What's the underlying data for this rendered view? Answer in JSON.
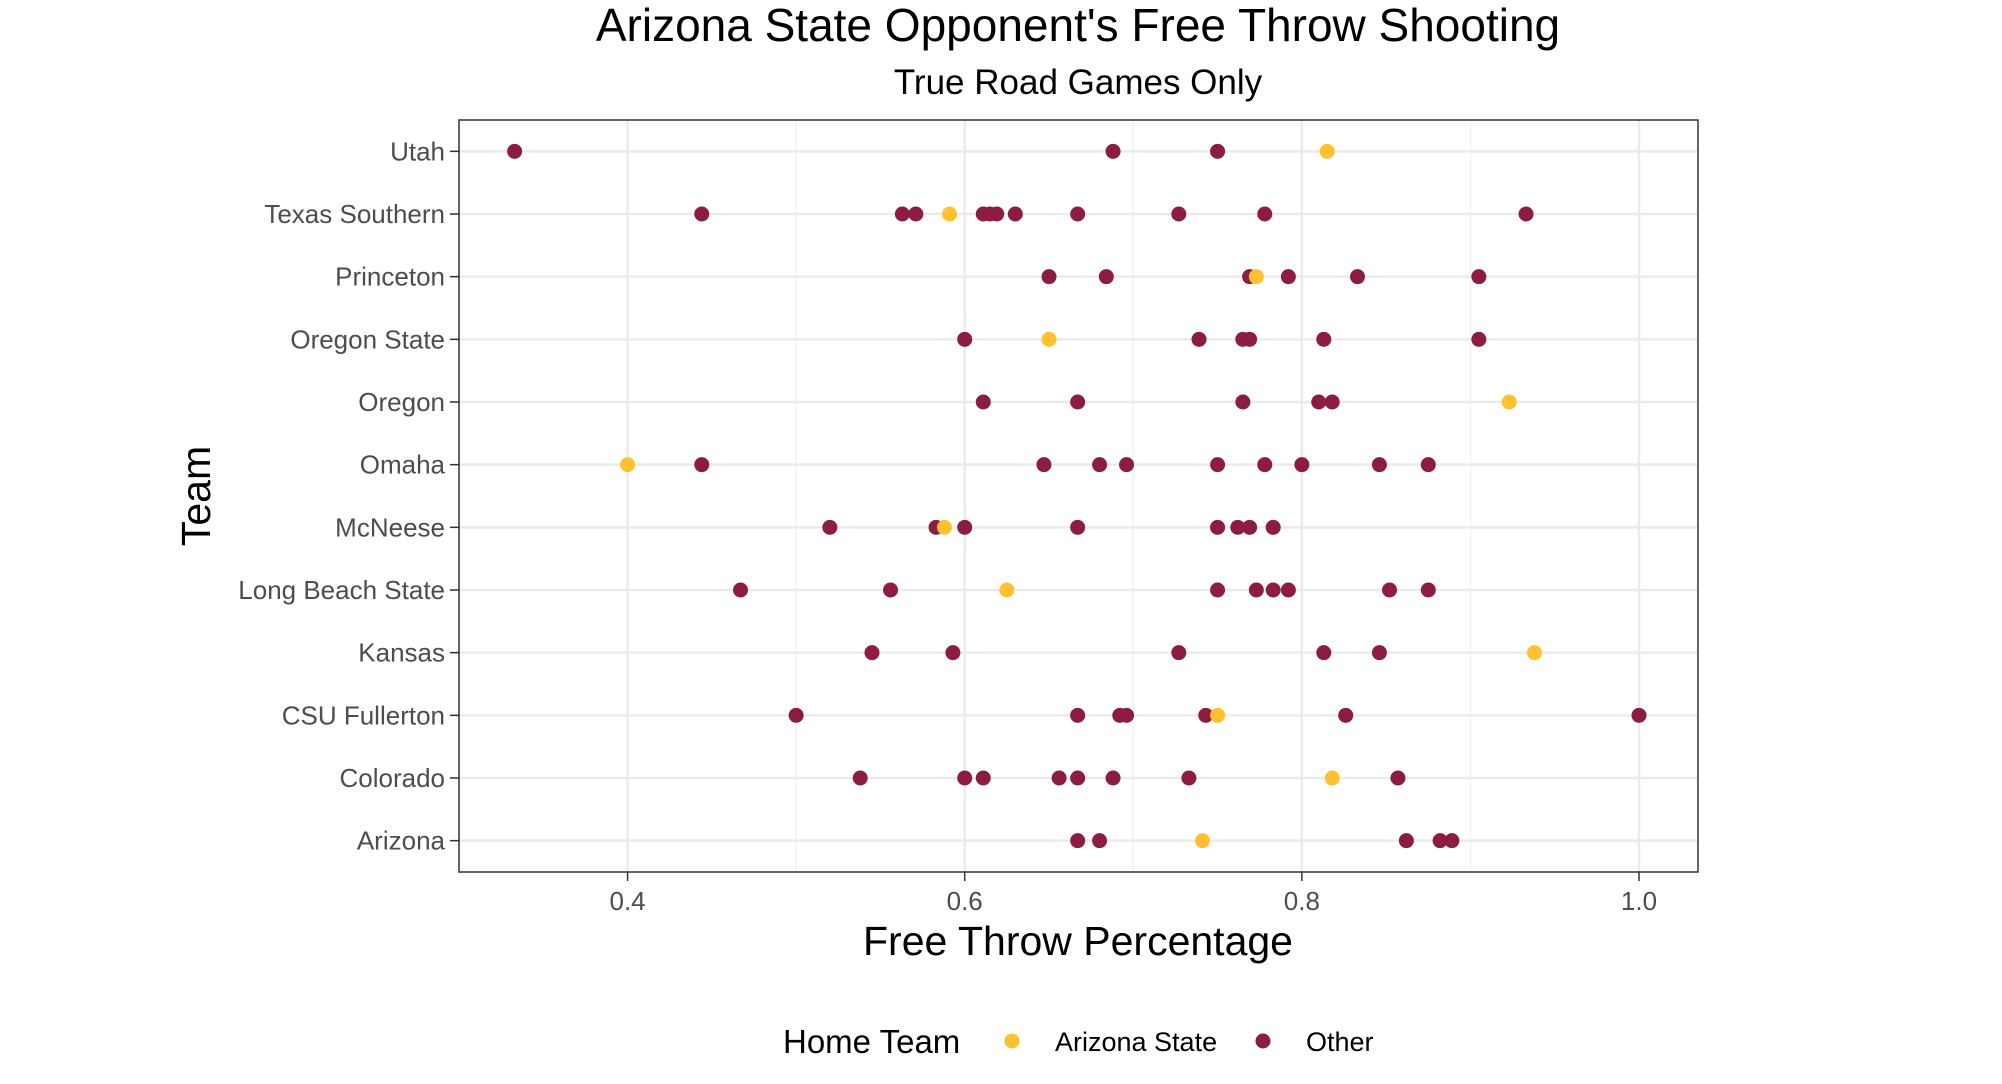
{
  "chart_data": {
    "type": "scatter",
    "title": "Arizona State Opponent's Free Throw Shooting",
    "subtitle": "True Road Games Only",
    "xlabel": "Free Throw Percentage",
    "ylabel": "Team",
    "xlim": [
      0.3,
      1.035
    ],
    "x_ticks": [
      0.4,
      0.6,
      0.8,
      1.0
    ],
    "x_tick_labels": [
      "0.4",
      "0.6",
      "0.8",
      "1.0"
    ],
    "grid": true,
    "categories": [
      "Arizona",
      "Colorado",
      "CSU Fullerton",
      "Kansas",
      "Long Beach State",
      "McNeese",
      "Omaha",
      "Oregon",
      "Oregon State",
      "Princeton",
      "Texas Southern",
      "Utah"
    ],
    "legend": {
      "title": "Home Team",
      "position": "bottom",
      "entries": [
        {
          "label": "Arizona State",
          "color": "#ffc130"
        },
        {
          "label": "Other",
          "color": "#8c1d40"
        }
      ]
    },
    "series": [
      {
        "name": "Other",
        "color": "#8c1d40",
        "points": [
          {
            "team": "Utah",
            "x": 0.333
          },
          {
            "team": "Utah",
            "x": 0.688
          },
          {
            "team": "Utah",
            "x": 0.75
          },
          {
            "team": "Texas Southern",
            "x": 0.444
          },
          {
            "team": "Texas Southern",
            "x": 0.563
          },
          {
            "team": "Texas Southern",
            "x": 0.571
          },
          {
            "team": "Texas Southern",
            "x": 0.611
          },
          {
            "team": "Texas Southern",
            "x": 0.615
          },
          {
            "team": "Texas Southern",
            "x": 0.619
          },
          {
            "team": "Texas Southern",
            "x": 0.63
          },
          {
            "team": "Texas Southern",
            "x": 0.667
          },
          {
            "team": "Texas Southern",
            "x": 0.727
          },
          {
            "team": "Texas Southern",
            "x": 0.778
          },
          {
            "team": "Texas Southern",
            "x": 0.933
          },
          {
            "team": "Princeton",
            "x": 0.65
          },
          {
            "team": "Princeton",
            "x": 0.684
          },
          {
            "team": "Princeton",
            "x": 0.769
          },
          {
            "team": "Princeton",
            "x": 0.792
          },
          {
            "team": "Princeton",
            "x": 0.833
          },
          {
            "team": "Princeton",
            "x": 0.905
          },
          {
            "team": "Oregon State",
            "x": 0.6
          },
          {
            "team": "Oregon State",
            "x": 0.739
          },
          {
            "team": "Oregon State",
            "x": 0.765
          },
          {
            "team": "Oregon State",
            "x": 0.769
          },
          {
            "team": "Oregon State",
            "x": 0.813
          },
          {
            "team": "Oregon State",
            "x": 0.905
          },
          {
            "team": "Oregon",
            "x": 0.611
          },
          {
            "team": "Oregon",
            "x": 0.667
          },
          {
            "team": "Oregon",
            "x": 0.765
          },
          {
            "team": "Oregon",
            "x": 0.81
          },
          {
            "team": "Oregon",
            "x": 0.818
          },
          {
            "team": "Omaha",
            "x": 0.444
          },
          {
            "team": "Omaha",
            "x": 0.647
          },
          {
            "team": "Omaha",
            "x": 0.68
          },
          {
            "team": "Omaha",
            "x": 0.696
          },
          {
            "team": "Omaha",
            "x": 0.75
          },
          {
            "team": "Omaha",
            "x": 0.778
          },
          {
            "team": "Omaha",
            "x": 0.8
          },
          {
            "team": "Omaha",
            "x": 0.846
          },
          {
            "team": "Omaha",
            "x": 0.875
          },
          {
            "team": "McNeese",
            "x": 0.52
          },
          {
            "team": "McNeese",
            "x": 0.583
          },
          {
            "team": "McNeese",
            "x": 0.6
          },
          {
            "team": "McNeese",
            "x": 0.667
          },
          {
            "team": "McNeese",
            "x": 0.75
          },
          {
            "team": "McNeese",
            "x": 0.762
          },
          {
            "team": "McNeese",
            "x": 0.769
          },
          {
            "team": "McNeese",
            "x": 0.783
          },
          {
            "team": "Long Beach State",
            "x": 0.467
          },
          {
            "team": "Long Beach State",
            "x": 0.556
          },
          {
            "team": "Long Beach State",
            "x": 0.75
          },
          {
            "team": "Long Beach State",
            "x": 0.773
          },
          {
            "team": "Long Beach State",
            "x": 0.783
          },
          {
            "team": "Long Beach State",
            "x": 0.792
          },
          {
            "team": "Long Beach State",
            "x": 0.852
          },
          {
            "team": "Long Beach State",
            "x": 0.875
          },
          {
            "team": "Kansas",
            "x": 0.545
          },
          {
            "team": "Kansas",
            "x": 0.593
          },
          {
            "team": "Kansas",
            "x": 0.727
          },
          {
            "team": "Kansas",
            "x": 0.813
          },
          {
            "team": "Kansas",
            "x": 0.846
          },
          {
            "team": "CSU Fullerton",
            "x": 0.5
          },
          {
            "team": "CSU Fullerton",
            "x": 0.667
          },
          {
            "team": "CSU Fullerton",
            "x": 0.692
          },
          {
            "team": "CSU Fullerton",
            "x": 0.696
          },
          {
            "team": "CSU Fullerton",
            "x": 0.743
          },
          {
            "team": "CSU Fullerton",
            "x": 0.826
          },
          {
            "team": "CSU Fullerton",
            "x": 1.0
          },
          {
            "team": "Colorado",
            "x": 0.538
          },
          {
            "team": "Colorado",
            "x": 0.6
          },
          {
            "team": "Colorado",
            "x": 0.611
          },
          {
            "team": "Colorado",
            "x": 0.656
          },
          {
            "team": "Colorado",
            "x": 0.667
          },
          {
            "team": "Colorado",
            "x": 0.688
          },
          {
            "team": "Colorado",
            "x": 0.733
          },
          {
            "team": "Colorado",
            "x": 0.857
          },
          {
            "team": "Arizona",
            "x": 0.667
          },
          {
            "team": "Arizona",
            "x": 0.68
          },
          {
            "team": "Arizona",
            "x": 0.862
          },
          {
            "team": "Arizona",
            "x": 0.882
          },
          {
            "team": "Arizona",
            "x": 0.889
          }
        ]
      },
      {
        "name": "Arizona State",
        "color": "#ffc130",
        "points": [
          {
            "team": "Utah",
            "x": 0.815
          },
          {
            "team": "Texas Southern",
            "x": 0.591
          },
          {
            "team": "Princeton",
            "x": 0.773
          },
          {
            "team": "Oregon State",
            "x": 0.65
          },
          {
            "team": "Oregon",
            "x": 0.923
          },
          {
            "team": "Omaha",
            "x": 0.4
          },
          {
            "team": "McNeese",
            "x": 0.588
          },
          {
            "team": "Long Beach State",
            "x": 0.625
          },
          {
            "team": "Kansas",
            "x": 0.938
          },
          {
            "team": "CSU Fullerton",
            "x": 0.75
          },
          {
            "team": "Colorado",
            "x": 0.818
          },
          {
            "team": "Arizona",
            "x": 0.741
          }
        ]
      }
    ]
  }
}
